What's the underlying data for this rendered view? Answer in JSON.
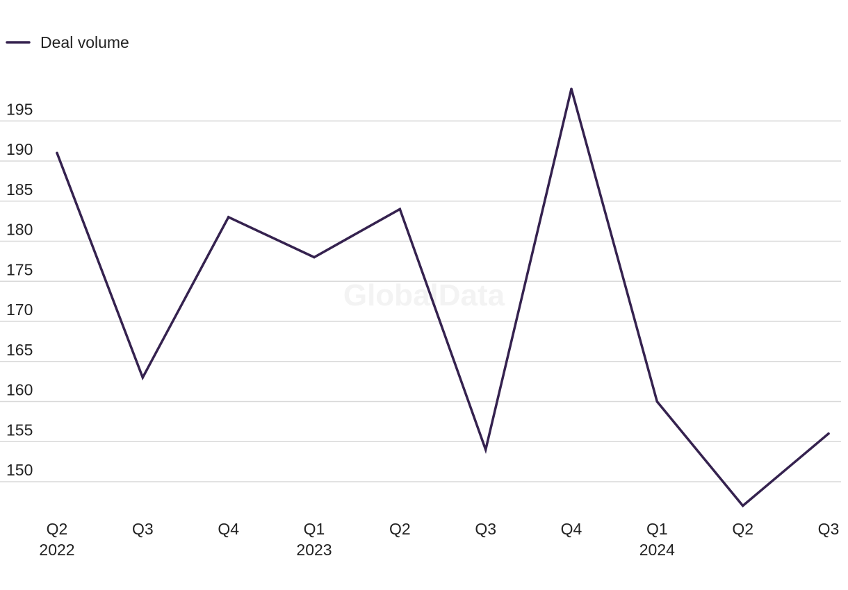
{
  "watermark": "GlobalData",
  "colors": {
    "series": "#35224f",
    "grid": "#d9d9d9",
    "text": "#222222"
  },
  "chart_data": {
    "type": "line",
    "title": "",
    "xlabel": "",
    "ylabel": "",
    "categories": [
      "Q2",
      "Q3",
      "Q4",
      "Q1",
      "Q2",
      "Q3",
      "Q4",
      "Q1",
      "Q2",
      "Q3"
    ],
    "year_labels": [
      "2022",
      "",
      "",
      "2023",
      "",
      "",
      "",
      "2024",
      "",
      ""
    ],
    "series": [
      {
        "name": "Deal volume",
        "values": [
          191,
          163,
          183,
          178,
          184,
          154,
          199,
          160,
          147,
          156
        ]
      }
    ],
    "yticks": [
      150,
      155,
      160,
      165,
      170,
      175,
      180,
      185,
      190,
      195
    ],
    "ylim": [
      145,
      200
    ],
    "grid": true,
    "legend_position": "top-left"
  }
}
